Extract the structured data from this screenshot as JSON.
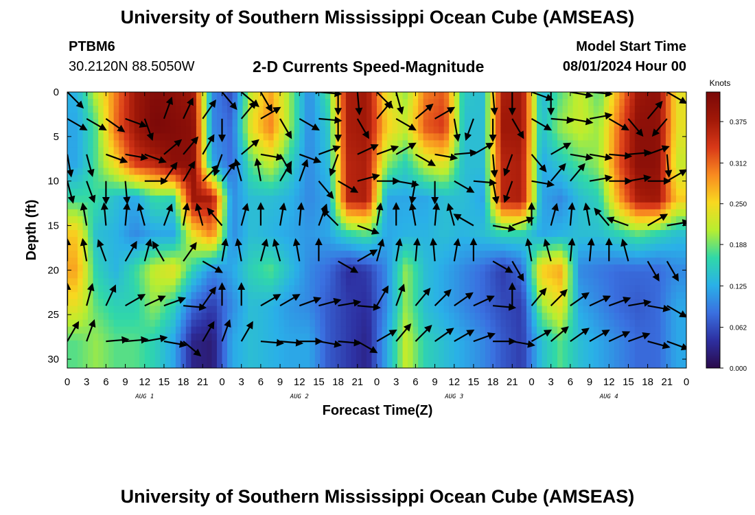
{
  "header": {
    "title": "University of Southern Mississippi Ocean Cube (AMSEAS)",
    "station_id": "PTBM6",
    "coords": "30.2120N  88.5050W",
    "plot_title": "2-D Currents Speed-Magnitude",
    "model_start_label": "Model Start Time",
    "model_start_value": "08/01/2024 Hour 00"
  },
  "footer": {
    "title": "University of Southern Mississippi Ocean Cube (AMSEAS)"
  },
  "chart_data": {
    "type": "heatmap",
    "xlabel": "Forecast Time(Z)",
    "ylabel": "Depth (ft)",
    "x_ticks": [
      "0",
      "3",
      "6",
      "9",
      "12",
      "15",
      "18",
      "21",
      "0",
      "3",
      "6",
      "9",
      "12",
      "15",
      "18",
      "21",
      "0",
      "3",
      "6",
      "9",
      "12",
      "15",
      "18",
      "21",
      "0",
      "3",
      "6",
      "9",
      "12",
      "15",
      "18",
      "21",
      "0"
    ],
    "x_range_hours": [
      0,
      96
    ],
    "day_labels": [
      "AUG 1",
      "AUG 2",
      "AUG 3",
      "AUG 4"
    ],
    "y_ticks": [
      0,
      5,
      10,
      15,
      20,
      25,
      30
    ],
    "ylim": [
      0,
      31
    ],
    "y_inverted": true,
    "colorbar": {
      "unit": "Knots",
      "ticks": [
        "0.375",
        "0.312",
        "0.250",
        "0.188",
        "0.125",
        "0.062",
        "0.000"
      ],
      "range": [
        0,
        0.42
      ],
      "colors": [
        "#2a0a4a",
        "#2d2fa0",
        "#3a70e0",
        "#2ab0e8",
        "#30d8a8",
        "#b8ee30",
        "#f8d820",
        "#f88a20",
        "#d83818",
        "#a01808",
        "#7a0808"
      ]
    },
    "depths_ft": [
      0,
      4,
      8,
      12,
      16,
      20,
      24,
      28
    ],
    "speed_knots_by_depth": [
      [
        0.13,
        0.22,
        0.3,
        0.38,
        0.41,
        0.4,
        0.38,
        0.1,
        0.06,
        0.22,
        0.28,
        0.2,
        0.1,
        0.18,
        0.37,
        0.38,
        0.24,
        0.2,
        0.3,
        0.32,
        0.15,
        0.14,
        0.37,
        0.38,
        0.13,
        0.18,
        0.22,
        0.18,
        0.28,
        0.38,
        0.4,
        0.24
      ],
      [
        0.12,
        0.18,
        0.31,
        0.38,
        0.42,
        0.41,
        0.4,
        0.1,
        0.08,
        0.24,
        0.3,
        0.2,
        0.1,
        0.15,
        0.37,
        0.38,
        0.26,
        0.22,
        0.32,
        0.34,
        0.14,
        0.14,
        0.38,
        0.38,
        0.14,
        0.2,
        0.22,
        0.2,
        0.31,
        0.4,
        0.4,
        0.24
      ],
      [
        0.12,
        0.18,
        0.25,
        0.34,
        0.36,
        0.4,
        0.4,
        0.12,
        0.08,
        0.18,
        0.22,
        0.16,
        0.1,
        0.14,
        0.36,
        0.37,
        0.2,
        0.16,
        0.22,
        0.24,
        0.14,
        0.14,
        0.36,
        0.37,
        0.12,
        0.15,
        0.18,
        0.2,
        0.32,
        0.4,
        0.4,
        0.22
      ],
      [
        0.17,
        0.17,
        0.14,
        0.12,
        0.17,
        0.16,
        0.38,
        0.37,
        0.1,
        0.14,
        0.14,
        0.13,
        0.1,
        0.12,
        0.36,
        0.37,
        0.12,
        0.12,
        0.12,
        0.14,
        0.14,
        0.12,
        0.36,
        0.37,
        0.12,
        0.1,
        0.14,
        0.16,
        0.28,
        0.37,
        0.38,
        0.26
      ],
      [
        0.26,
        0.14,
        0.13,
        0.1,
        0.12,
        0.12,
        0.24,
        0.3,
        0.1,
        0.14,
        0.13,
        0.12,
        0.11,
        0.12,
        0.16,
        0.18,
        0.12,
        0.13,
        0.13,
        0.14,
        0.13,
        0.14,
        0.16,
        0.16,
        0.12,
        0.13,
        0.14,
        0.14,
        0.16,
        0.18,
        0.16,
        0.14
      ],
      [
        0.28,
        0.16,
        0.13,
        0.17,
        0.22,
        0.24,
        0.16,
        0.1,
        0.12,
        0.16,
        0.18,
        0.14,
        0.1,
        0.08,
        0.04,
        0.05,
        0.1,
        0.2,
        0.14,
        0.12,
        0.1,
        0.08,
        0.05,
        0.08,
        0.26,
        0.28,
        0.1,
        0.09,
        0.08,
        0.08,
        0.08,
        0.1
      ],
      [
        0.24,
        0.18,
        0.16,
        0.16,
        0.2,
        0.16,
        0.08,
        0.05,
        0.1,
        0.14,
        0.13,
        0.11,
        0.1,
        0.07,
        0.05,
        0.04,
        0.1,
        0.2,
        0.14,
        0.12,
        0.1,
        0.08,
        0.06,
        0.05,
        0.2,
        0.24,
        0.12,
        0.1,
        0.08,
        0.07,
        0.08,
        0.12
      ],
      [
        0.18,
        0.2,
        0.18,
        0.18,
        0.16,
        0.12,
        0.03,
        0.02,
        0.12,
        0.14,
        0.13,
        0.12,
        0.12,
        0.07,
        0.05,
        0.03,
        0.12,
        0.22,
        0.16,
        0.14,
        0.12,
        0.1,
        0.07,
        0.05,
        0.14,
        0.18,
        0.14,
        0.12,
        0.1,
        0.08,
        0.08,
        0.12
      ]
    ],
    "vector_depths_ft": [
      0,
      3,
      7,
      10,
      15,
      19,
      24,
      28
    ],
    "vector_x_hours": [
      0,
      3,
      6,
      9,
      12,
      15,
      18,
      21,
      24,
      27,
      30,
      33,
      36,
      39,
      42,
      45,
      48,
      51,
      54,
      57,
      60,
      63,
      66,
      69,
      72,
      75,
      78,
      81,
      84,
      87,
      90,
      93
    ],
    "vector_direction_deg_by_depth": [
      [
        135,
        45,
        30,
        35,
        20,
        15,
        30,
        40,
        140,
        130,
        150,
        80,
        85,
        95,
        180,
        175,
        135,
        165,
        30,
        40,
        70,
        60,
        175,
        180,
        110,
        180,
        100,
        95,
        70,
        60,
        80,
        120
      ],
      [
        120,
        120,
        125,
        110,
        160,
        20,
        25,
        35,
        180,
        40,
        60,
        150,
        120,
        95,
        180,
        150,
        40,
        120,
        50,
        60,
        170,
        200,
        180,
        150,
        120,
        95,
        100,
        80,
        120,
        140,
        40,
        220
      ],
      [
        170,
        165,
        110,
        100,
        110,
        50,
        40,
        30,
        200,
        50,
        100,
        150,
        110,
        70,
        200,
        65,
        70,
        60,
        120,
        100,
        85,
        60,
        175,
        200,
        140,
        60,
        100,
        100,
        95,
        85,
        70,
        175
      ],
      [
        165,
        160,
        180,
        175,
        90,
        35,
        30,
        45,
        35,
        345,
        350,
        30,
        20,
        140,
        120,
        75,
        90,
        100,
        190,
        180,
        120,
        95,
        170,
        200,
        100,
        40,
        40,
        80,
        90,
        80,
        90,
        60
      ],
      [
        340,
        350,
        355,
        5,
        345,
        20,
        10,
        345,
        320,
        15,
        0,
        10,
        5,
        20,
        315,
        110,
        10,
        0,
        350,
        5,
        345,
        300,
        100,
        70,
        0,
        15,
        5,
        350,
        320,
        290,
        60,
        80
      ],
      [
        0,
        350,
        340,
        30,
        15,
        330,
        35,
        120,
        10,
        350,
        15,
        345,
        350,
        0,
        120,
        60,
        15,
        10,
        5,
        355,
        10,
        0,
        120,
        150,
        350,
        345,
        5,
        5,
        0,
        345,
        150,
        150
      ],
      [
        0,
        15,
        25,
        60,
        65,
        70,
        95,
        35,
        0,
        0,
        60,
        60,
        70,
        75,
        80,
        95,
        30,
        20,
        40,
        45,
        55,
        65,
        95,
        0,
        40,
        45,
        55,
        65,
        70,
        80,
        100,
        120
      ],
      [
        30,
        20,
        85,
        85,
        80,
        100,
        130,
        30,
        20,
        30,
        95,
        95,
        90,
        100,
        95,
        120,
        60,
        40,
        45,
        55,
        60,
        70,
        90,
        100,
        60,
        50,
        55,
        60,
        65,
        70,
        105,
        110
      ]
    ]
  }
}
